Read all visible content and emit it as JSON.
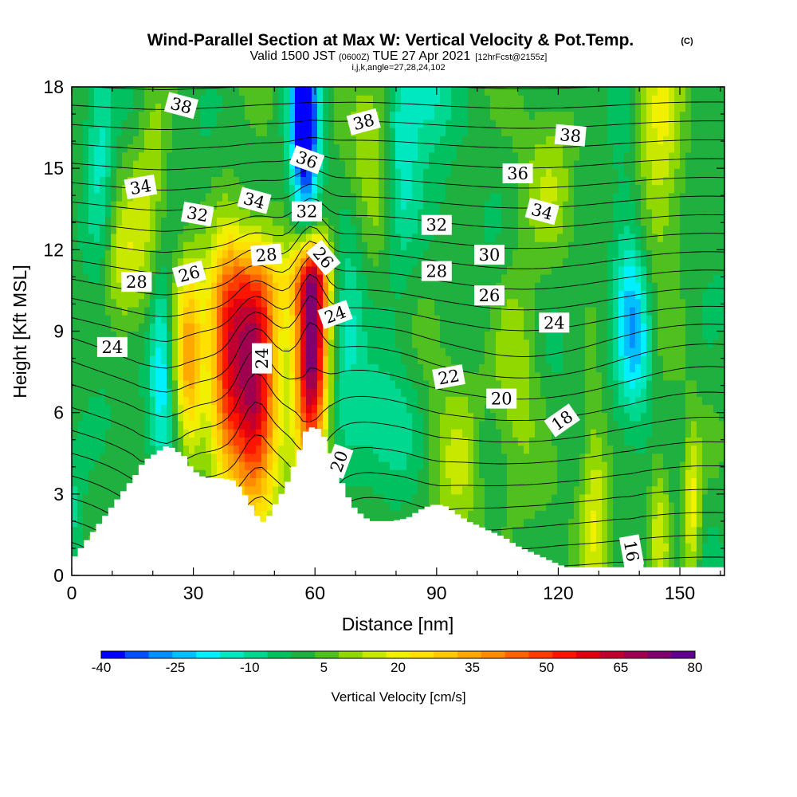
{
  "title": {
    "main": "Wind-Parallel Section at Max W: Vertical Velocity & Pot.Temp.",
    "copyright": "(C)",
    "valid_prefix": "Valid 1500 JST",
    "valid_utc": "(0600Z)",
    "valid_date": "TUE 27 Apr 2021",
    "forecast": "[12hrFcst@2155z]",
    "indices": "i,j,k,angle=27,28,24,102"
  },
  "chart_data": {
    "type": "heatmap",
    "xlabel": "Distance [nm]",
    "ylabel": "Height [Kft MSL]",
    "xlim": [
      0,
      161
    ],
    "ylim": [
      0,
      18
    ],
    "x_ticks": [
      "0",
      "30",
      "60",
      "90",
      "120",
      "150"
    ],
    "y_ticks": [
      "0",
      "3",
      "6",
      "9",
      "12",
      "15",
      "18"
    ],
    "colorbar": {
      "label": "Vertical Velocity [cm/s]",
      "tick_labels": [
        "-40",
        "-25",
        "-10",
        "5",
        "20",
        "35",
        "50",
        "65",
        "80"
      ],
      "levels": [
        -40,
        -35,
        -30,
        -25,
        -20,
        -15,
        -10,
        -5,
        0,
        5,
        10,
        15,
        20,
        25,
        30,
        35,
        40,
        45,
        50,
        55,
        60,
        65,
        70,
        75,
        80
      ],
      "colors": [
        "#0000ff",
        "#0050ff",
        "#0090ff",
        "#00c0ff",
        "#00f0ff",
        "#00e8c0",
        "#00d890",
        "#00c060",
        "#20b040",
        "#50c020",
        "#90d800",
        "#c8e800",
        "#f0f000",
        "#ffe000",
        "#ffc800",
        "#ffa800",
        "#ff8c00",
        "#ff6400",
        "#ff3c00",
        "#ff1400",
        "#e00010",
        "#c00030",
        "#a00050",
        "#800070",
        "#60008c"
      ]
    },
    "terrain_kft": [
      [
        0,
        0.7
      ],
      [
        3,
        1.3
      ],
      [
        6,
        1.9
      ],
      [
        9,
        2.5
      ],
      [
        12,
        3.1
      ],
      [
        15,
        3.7
      ],
      [
        17,
        4.2
      ],
      [
        20,
        4.5
      ],
      [
        23,
        4.8
      ],
      [
        27,
        4.4
      ],
      [
        29,
        3.9
      ],
      [
        32,
        3.6
      ],
      [
        35,
        3.6
      ],
      [
        39,
        3.5
      ],
      [
        41,
        3.2
      ],
      [
        43,
        2.7
      ],
      [
        45,
        2.2
      ],
      [
        47,
        1.9
      ],
      [
        49,
        2.5
      ],
      [
        51,
        3.0
      ],
      [
        53,
        3.6
      ],
      [
        55,
        4.4
      ],
      [
        57,
        5.3
      ],
      [
        59,
        5.5
      ],
      [
        61,
        5.3
      ],
      [
        63,
        4.5
      ],
      [
        65,
        3.8
      ],
      [
        67,
        3.0
      ],
      [
        69,
        2.5
      ],
      [
        71,
        2.2
      ],
      [
        73,
        2.0
      ],
      [
        78,
        2.0
      ],
      [
        82,
        2.1
      ],
      [
        85,
        2.4
      ],
      [
        88,
        2.6
      ],
      [
        91,
        2.6
      ],
      [
        94,
        2.3
      ],
      [
        97,
        2.0
      ],
      [
        100,
        1.8
      ],
      [
        103,
        1.6
      ],
      [
        106,
        1.4
      ],
      [
        109,
        1.1
      ],
      [
        112,
        0.9
      ],
      [
        115,
        0.7
      ],
      [
        118,
        0.5
      ],
      [
        121,
        0.3
      ],
      [
        125,
        0.3
      ],
      [
        135,
        0.3
      ],
      [
        138,
        0.7
      ],
      [
        141,
        0.3
      ],
      [
        150,
        0.3
      ],
      [
        155,
        0.3
      ],
      [
        161,
        0.3
      ]
    ],
    "w_features": [
      {
        "x": 59,
        "y": 8.4,
        "sx": 2.8,
        "sy": 2.8,
        "w": 85
      },
      {
        "x": 59,
        "y": 11.0,
        "sx": 3.5,
        "sy": 1.0,
        "w": 30
      },
      {
        "x": 45,
        "y": 6.6,
        "sx": 4.0,
        "sy": 3.2,
        "w": 65
      },
      {
        "x": 38,
        "y": 8.0,
        "sx": 3.0,
        "sy": 3.0,
        "w": 40
      },
      {
        "x": 29,
        "y": 7.8,
        "sx": 2.5,
        "sy": 2.6,
        "w": 33
      },
      {
        "x": 45,
        "y": 10.5,
        "sx": 8.0,
        "sy": 1.6,
        "w": 22
      },
      {
        "x": 13,
        "y": 11.5,
        "sx": 4.0,
        "sy": 2.0,
        "w": 15
      },
      {
        "x": 95,
        "y": 3.8,
        "sx": 6.0,
        "sy": 2.2,
        "w": 14
      },
      {
        "x": 110,
        "y": 8.0,
        "sx": 4.0,
        "sy": 3.0,
        "w": 12
      },
      {
        "x": 129,
        "y": 2.8,
        "sx": 2.5,
        "sy": 2.8,
        "w": 18
      },
      {
        "x": 145,
        "y": 1.8,
        "sx": 2.0,
        "sy": 2.0,
        "w": 18
      },
      {
        "x": 153,
        "y": 2.4,
        "sx": 1.5,
        "sy": 2.0,
        "w": 22
      },
      {
        "x": 145,
        "y": 16.2,
        "sx": 4.0,
        "sy": 3.5,
        "w": 20
      },
      {
        "x": 75,
        "y": 16.5,
        "sx": 5.0,
        "sy": 2.5,
        "w": 15
      },
      {
        "x": 20,
        "y": 15.5,
        "sx": 3.0,
        "sy": 3.0,
        "w": 12
      },
      {
        "x": 118,
        "y": 14.5,
        "sx": 4.0,
        "sy": 2.0,
        "w": 10
      },
      {
        "x": 58,
        "y": 14.5,
        "sx": 2.5,
        "sy": 3.5,
        "w": -32
      },
      {
        "x": 57,
        "y": 17.0,
        "sx": 2.5,
        "sy": 2.0,
        "w": -30
      },
      {
        "x": 68,
        "y": 9.5,
        "sx": 3.0,
        "sy": 2.5,
        "w": -15
      },
      {
        "x": 22,
        "y": 8.0,
        "sx": 2.0,
        "sy": 2.5,
        "w": -22
      },
      {
        "x": 139,
        "y": 8.8,
        "sx": 3.0,
        "sy": 2.0,
        "w": -22
      },
      {
        "x": 137,
        "y": 11.5,
        "sx": 3.0,
        "sy": 2.5,
        "w": -12
      },
      {
        "x": 7,
        "y": 15.5,
        "sx": 2.5,
        "sy": 3.5,
        "w": -15
      },
      {
        "x": 81,
        "y": 15.5,
        "sx": 3.0,
        "sy": 3.0,
        "w": -18
      },
      {
        "x": 88,
        "y": 17.8,
        "sx": 4.0,
        "sy": 1.5,
        "w": -15
      },
      {
        "x": 78,
        "y": 5.5,
        "sx": 5.0,
        "sy": 1.5,
        "w": -12
      },
      {
        "x": 102,
        "y": 4.5,
        "sx": 3.0,
        "sy": 1.5,
        "w": -8
      },
      {
        "x": 1,
        "y": 2.5,
        "sx": 1.5,
        "sy": 1.5,
        "w": -10
      }
    ],
    "theta_contours": {
      "levels": [
        16,
        17,
        18,
        19,
        20,
        21,
        22,
        23,
        24,
        25,
        26,
        27,
        28,
        29,
        30,
        31,
        32,
        33,
        34,
        35,
        36,
        37,
        38,
        39,
        40
      ],
      "labels": [
        {
          "text": "38",
          "x": 27,
          "y": 17.3,
          "rot": 15
        },
        {
          "text": "38",
          "x": 72,
          "y": 16.7,
          "rot": -15
        },
        {
          "text": "38",
          "x": 123,
          "y": 16.2,
          "rot": 5
        },
        {
          "text": "36",
          "x": 58,
          "y": 15.3,
          "rot": 20
        },
        {
          "text": "36",
          "x": 110,
          "y": 14.8,
          "rot": 0
        },
        {
          "text": "34",
          "x": 17,
          "y": 14.3,
          "rot": -10
        },
        {
          "text": "34",
          "x": 45,
          "y": 13.8,
          "rot": 15
        },
        {
          "text": "34",
          "x": 116,
          "y": 13.4,
          "rot": 15
        },
        {
          "text": "32",
          "x": 31,
          "y": 13.3,
          "rot": 10
        },
        {
          "text": "32",
          "x": 58,
          "y": 13.4,
          "rot": 0
        },
        {
          "text": "32",
          "x": 90,
          "y": 12.9,
          "rot": 0
        },
        {
          "text": "30",
          "x": 103,
          "y": 11.8,
          "rot": 0
        },
        {
          "text": "28",
          "x": 16,
          "y": 10.8,
          "rot": 0
        },
        {
          "text": "28",
          "x": 48,
          "y": 11.8,
          "rot": -5
        },
        {
          "text": "28",
          "x": 90,
          "y": 11.2,
          "rot": 0
        },
        {
          "text": "26",
          "x": 29,
          "y": 11.1,
          "rot": -15
        },
        {
          "text": "26",
          "x": 62,
          "y": 11.7,
          "rot": 50
        },
        {
          "text": "26",
          "x": 103,
          "y": 10.3,
          "rot": 0
        },
        {
          "text": "24",
          "x": 10,
          "y": 8.4,
          "rot": 0
        },
        {
          "text": "24",
          "x": 47,
          "y": 8.0,
          "rot": -90
        },
        {
          "text": "24",
          "x": 65,
          "y": 9.6,
          "rot": -20
        },
        {
          "text": "24",
          "x": 119,
          "y": 9.3,
          "rot": 0
        },
        {
          "text": "22",
          "x": 93,
          "y": 7.3,
          "rot": -10
        },
        {
          "text": "20",
          "x": 66,
          "y": 4.2,
          "rot": -70
        },
        {
          "text": "20",
          "x": 106,
          "y": 6.5,
          "rot": 0
        },
        {
          "text": "18",
          "x": 121,
          "y": 5.7,
          "rot": -35
        },
        {
          "text": "16",
          "x": 138,
          "y": 0.9,
          "rot": 80
        }
      ]
    }
  }
}
